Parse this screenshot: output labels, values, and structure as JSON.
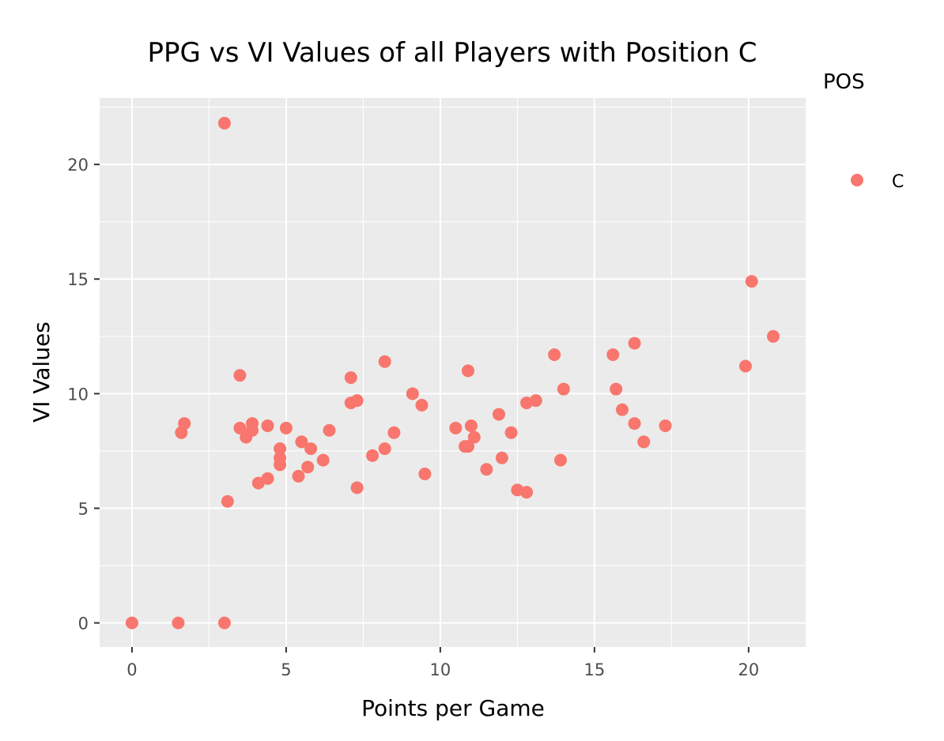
{
  "chart_data": {
    "type": "scatter",
    "title": "PPG vs VI Values of all Players with Position C",
    "xlabel": "Points per Game",
    "ylabel": "VI Values",
    "xlim": [
      -1.05,
      21.85
    ],
    "ylim": [
      -1.05,
      22.9
    ],
    "x_ticks": [
      0,
      5,
      10,
      15,
      20
    ],
    "y_ticks": [
      0,
      5,
      10,
      15,
      20
    ],
    "x_tick_labels": [
      "0",
      "5",
      "10",
      "15",
      "20"
    ],
    "y_tick_labels": [
      "0",
      "5",
      "10",
      "15",
      "20"
    ],
    "grid": true,
    "panel_background": "#ebebeb",
    "legend": {
      "title": "POS",
      "placement": "right",
      "entries": [
        {
          "label": "C",
          "color": "#f8766d"
        }
      ]
    },
    "series": [
      {
        "name": "C",
        "color": "#f8766d",
        "points": [
          [
            0.0,
            0.0
          ],
          [
            1.5,
            0.0
          ],
          [
            3.0,
            0.0
          ],
          [
            3.0,
            21.8
          ],
          [
            3.1,
            5.3
          ],
          [
            1.6,
            8.3
          ],
          [
            1.7,
            8.7
          ],
          [
            3.5,
            10.8
          ],
          [
            3.5,
            8.5
          ],
          [
            3.7,
            8.1
          ],
          [
            3.9,
            8.4
          ],
          [
            3.9,
            8.7
          ],
          [
            4.1,
            6.1
          ],
          [
            4.4,
            6.3
          ],
          [
            4.4,
            8.6
          ],
          [
            4.8,
            7.6
          ],
          [
            4.8,
            7.2
          ],
          [
            4.8,
            6.9
          ],
          [
            5.0,
            8.5
          ],
          [
            5.4,
            6.4
          ],
          [
            5.5,
            7.9
          ],
          [
            5.7,
            6.8
          ],
          [
            5.8,
            7.6
          ],
          [
            6.2,
            7.1
          ],
          [
            6.4,
            8.4
          ],
          [
            7.1,
            10.7
          ],
          [
            7.1,
            9.6
          ],
          [
            7.3,
            9.7
          ],
          [
            7.3,
            5.9
          ],
          [
            7.8,
            7.3
          ],
          [
            8.2,
            11.4
          ],
          [
            8.2,
            7.6
          ],
          [
            8.5,
            8.3
          ],
          [
            9.1,
            10.0
          ],
          [
            9.4,
            9.5
          ],
          [
            9.5,
            6.5
          ],
          [
            10.5,
            8.5
          ],
          [
            10.8,
            7.7
          ],
          [
            10.9,
            11.0
          ],
          [
            10.9,
            7.7
          ],
          [
            11.0,
            8.6
          ],
          [
            11.1,
            8.1
          ],
          [
            11.5,
            6.7
          ],
          [
            11.9,
            9.1
          ],
          [
            12.0,
            7.2
          ],
          [
            12.3,
            8.3
          ],
          [
            12.5,
            5.8
          ],
          [
            12.8,
            5.7
          ],
          [
            12.8,
            9.6
          ],
          [
            13.1,
            9.7
          ],
          [
            13.7,
            11.7
          ],
          [
            13.9,
            7.1
          ],
          [
            14.0,
            10.2
          ],
          [
            15.6,
            11.7
          ],
          [
            15.7,
            10.2
          ],
          [
            15.9,
            9.3
          ],
          [
            16.3,
            12.2
          ],
          [
            16.3,
            8.7
          ],
          [
            16.6,
            7.9
          ],
          [
            17.3,
            8.6
          ],
          [
            19.9,
            11.2
          ],
          [
            20.1,
            14.9
          ],
          [
            20.8,
            12.5
          ]
        ]
      }
    ]
  }
}
